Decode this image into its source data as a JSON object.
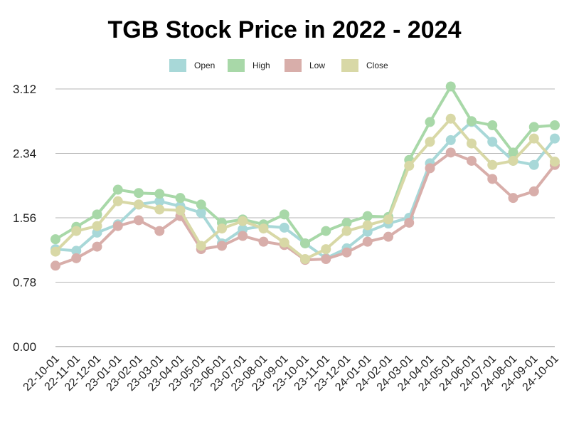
{
  "chart_data": {
    "type": "line",
    "title": "TGB Stock Price in 2022 - 2024",
    "xlabel": "",
    "ylabel": "",
    "x": [
      "22-10-01",
      "22-11-01",
      "22-12-01",
      "23-01-01",
      "23-02-01",
      "23-03-01",
      "23-04-01",
      "23-05-01",
      "23-06-01",
      "23-07-01",
      "23-08-01",
      "23-09-01",
      "23-10-01",
      "23-11-01",
      "23-12-01",
      "24-01-01",
      "24-02-01",
      "24-03-01",
      "24-04-01",
      "24-05-01",
      "24-06-01",
      "24-07-01",
      "24-08-01",
      "24-09-01",
      "24-10-01"
    ],
    "yticks": [
      "0.00",
      "0.78",
      "1.56",
      "2.34",
      "3.12"
    ],
    "ylim": [
      0,
      3.12
    ],
    "grid": true,
    "legend_position": "top",
    "series": [
      {
        "name": "Open",
        "color": "#a8d8d8",
        "values": [
          1.18,
          1.16,
          1.38,
          1.48,
          1.72,
          1.76,
          1.7,
          1.62,
          1.25,
          1.42,
          1.46,
          1.44,
          1.25,
          1.07,
          1.19,
          1.39,
          1.49,
          1.56,
          2.22,
          2.5,
          2.72,
          2.48,
          2.25,
          2.2,
          2.52
        ]
      },
      {
        "name": "High",
        "color": "#a8d8a8",
        "values": [
          1.3,
          1.45,
          1.6,
          1.9,
          1.86,
          1.85,
          1.8,
          1.72,
          1.5,
          1.54,
          1.48,
          1.6,
          1.25,
          1.4,
          1.5,
          1.58,
          1.57,
          2.26,
          2.72,
          3.15,
          2.73,
          2.68,
          2.35,
          2.66,
          2.68
        ]
      },
      {
        "name": "Low",
        "color": "#d8aeaa",
        "values": [
          0.98,
          1.07,
          1.21,
          1.46,
          1.53,
          1.4,
          1.58,
          1.18,
          1.22,
          1.34,
          1.27,
          1.23,
          1.05,
          1.06,
          1.14,
          1.27,
          1.33,
          1.5,
          2.16,
          2.35,
          2.25,
          2.03,
          1.8,
          1.88,
          2.2
        ]
      },
      {
        "name": "Close",
        "color": "#d8d8a6",
        "values": [
          1.15,
          1.4,
          1.46,
          1.76,
          1.72,
          1.66,
          1.65,
          1.22,
          1.43,
          1.52,
          1.43,
          1.26,
          1.06,
          1.18,
          1.4,
          1.47,
          1.54,
          2.19,
          2.48,
          2.76,
          2.46,
          2.2,
          2.25,
          2.52,
          2.24
        ]
      }
    ]
  }
}
